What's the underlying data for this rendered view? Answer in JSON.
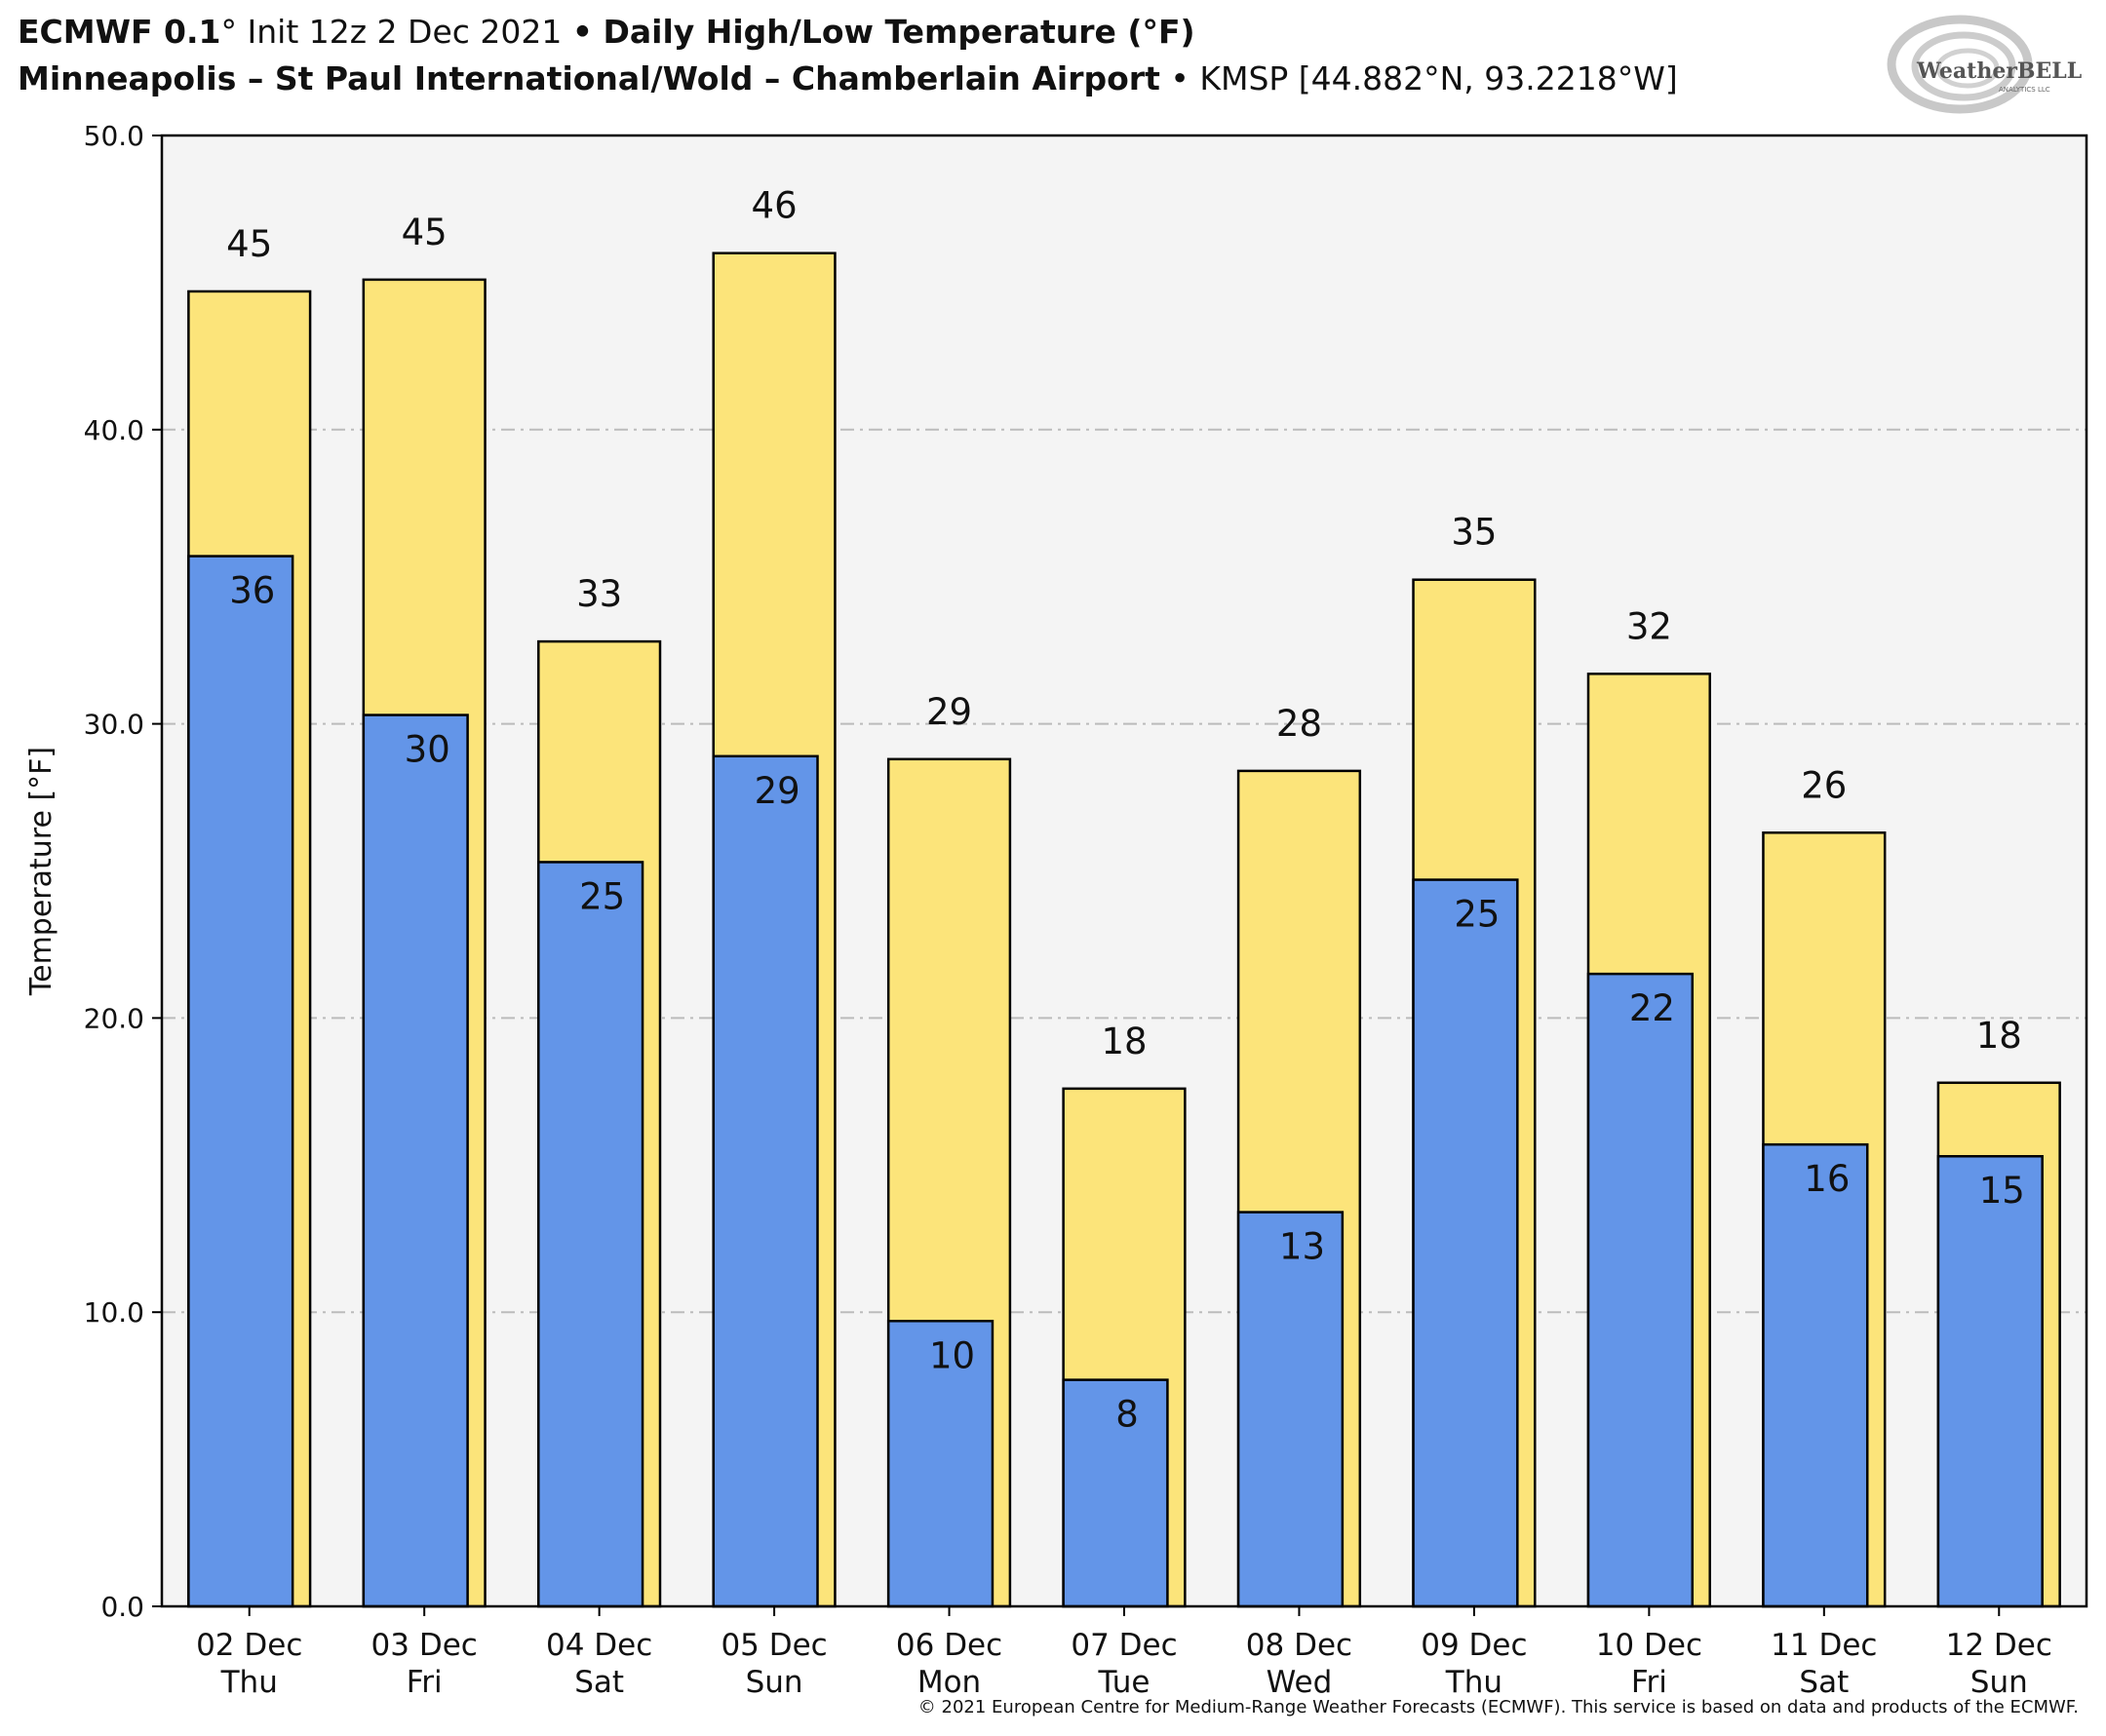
{
  "header": {
    "model": "ECMWF 0.1",
    "degree_symbol": "°",
    "init": "Init 12z 2 Dec 2021",
    "bullet": "•",
    "product": "Daily High/Low Temperature (°F)",
    "station_name": "Minneapolis – St Paul International/Wold – Chamberlain Airport",
    "station_info": "KMSP [44.882°N, 93.2218°W]"
  },
  "logo": {
    "text": "WeatherBELL",
    "sub": "ANALYTICS LLC",
    "icon": "swirl-icon"
  },
  "footer": {
    "copyright": "© 2021 European Centre for Medium-Range Weather Forecasts (ECMWF). This service is based on data and products of the ECMWF."
  },
  "colors": {
    "high": "#fce47a",
    "low": "#6395e8",
    "plot_bg": "#f4f4f4",
    "outline": "#000000"
  },
  "chart_data": {
    "type": "bar",
    "title": "Daily High/Low Temperature (°F)",
    "xlabel": "",
    "ylabel": "Temperature [°F]",
    "ylim": [
      0,
      50
    ],
    "yticks": [
      0,
      10,
      20,
      30,
      40,
      50
    ],
    "ytick_labels": [
      "0.0",
      "10.0",
      "20.0",
      "30.0",
      "40.0",
      "50.0"
    ],
    "grid": "horizontal dashed",
    "categories": [
      [
        "02 Dec",
        "Thu"
      ],
      [
        "03 Dec",
        "Fri"
      ],
      [
        "04 Dec",
        "Sat"
      ],
      [
        "05 Dec",
        "Sun"
      ],
      [
        "06 Dec",
        "Mon"
      ],
      [
        "07 Dec",
        "Tue"
      ],
      [
        "08 Dec",
        "Wed"
      ],
      [
        "09 Dec",
        "Thu"
      ],
      [
        "10 Dec",
        "Fri"
      ],
      [
        "11 Dec",
        "Sat"
      ],
      [
        "12 Dec",
        "Sun"
      ]
    ],
    "series": [
      {
        "key": "high",
        "values": [
          44.7,
          45.1,
          32.8,
          46.0,
          28.8,
          17.6,
          28.4,
          34.9,
          31.7,
          26.3,
          17.8
        ],
        "labels": [
          "45",
          "45",
          "33",
          "46",
          "29",
          "18",
          "28",
          "35",
          "32",
          "26",
          "18"
        ]
      },
      {
        "key": "low",
        "values": [
          35.7,
          30.3,
          25.3,
          28.9,
          9.7,
          7.7,
          13.4,
          24.7,
          21.5,
          15.7,
          15.3
        ],
        "labels": [
          "36",
          "30",
          "25",
          "29",
          "10",
          "8",
          "13",
          "25",
          "22",
          "16",
          "15"
        ]
      }
    ]
  }
}
